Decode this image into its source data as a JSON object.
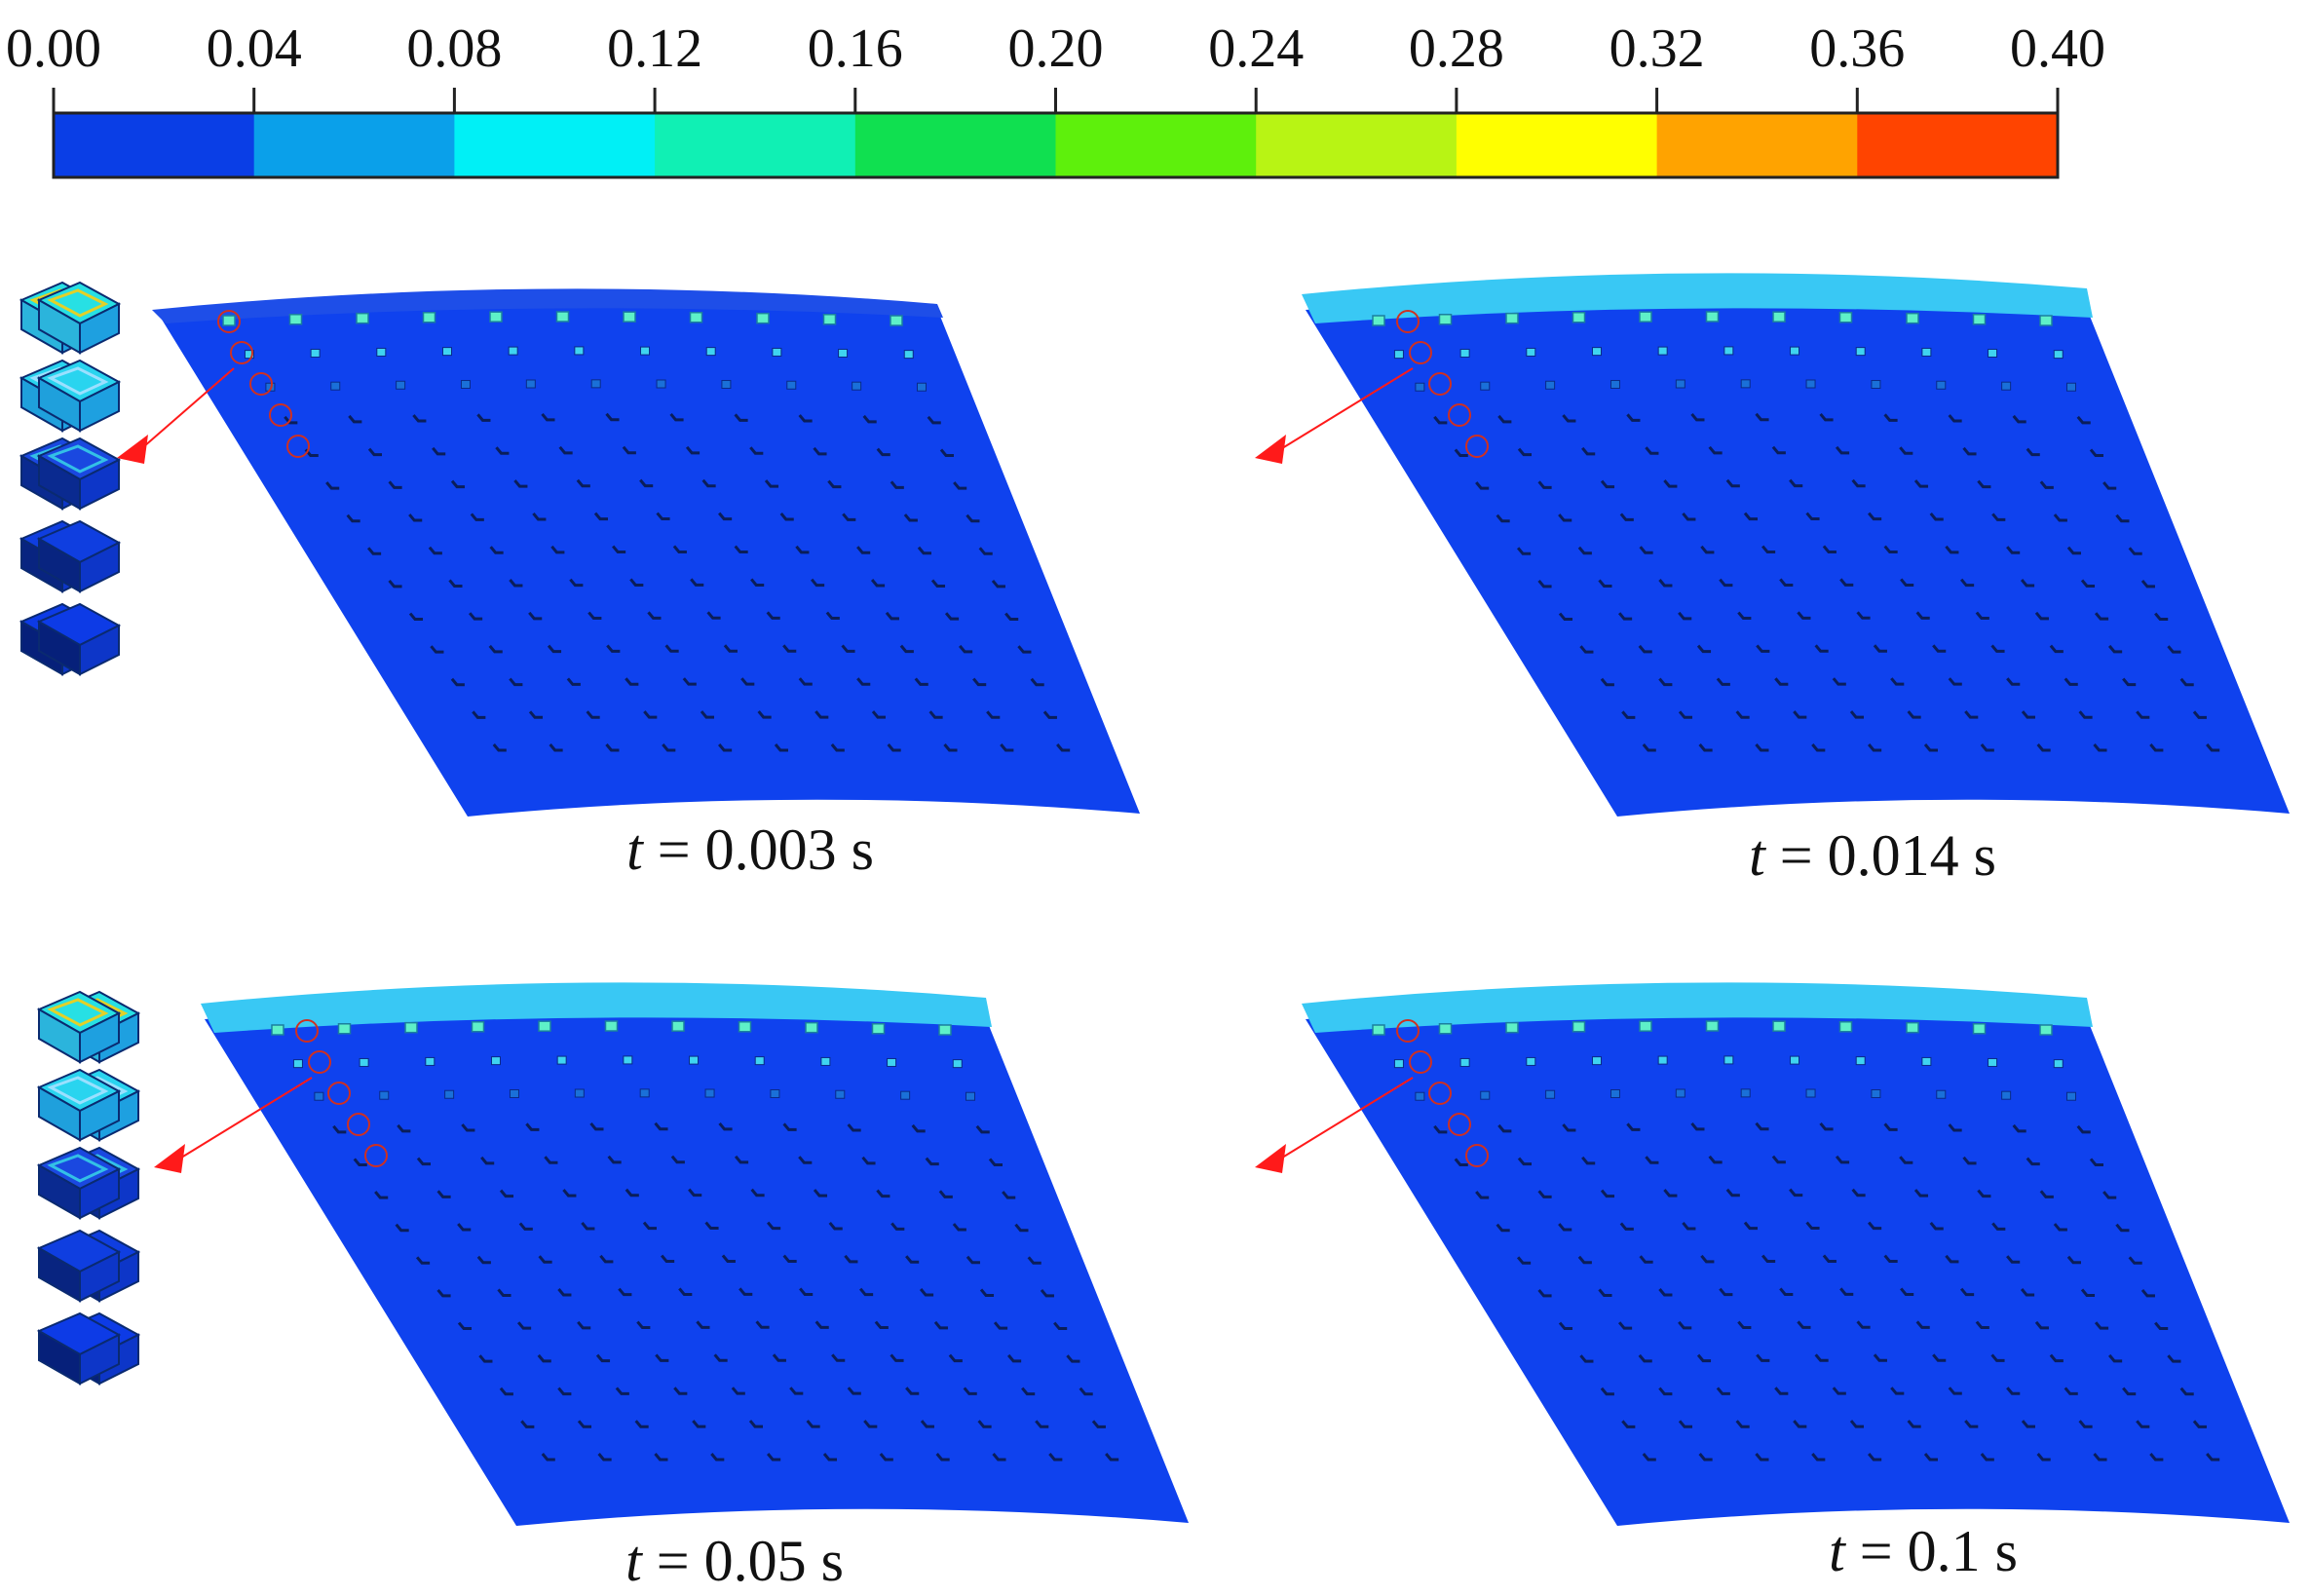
{
  "colorbar": {
    "tick_labels": [
      "0.00",
      "0.04",
      "0.08",
      "0.12",
      "0.16",
      "0.20",
      "0.24",
      "0.28",
      "0.32",
      "0.36",
      "0.40"
    ],
    "colors": [
      "#0a3ee6",
      "#0aa0ea",
      "#00f0f6",
      "#10f0b4",
      "#10e050",
      "#5ef00c",
      "#b8f414",
      "#ffff00",
      "#ffa300",
      "#ff4400"
    ]
  },
  "panels": [
    {
      "t_var": "t",
      "time_text": "= 0.003 s"
    },
    {
      "t_var": "t",
      "time_text": "= 0.014 s"
    },
    {
      "t_var": "t",
      "time_text": "= 0.05 s"
    },
    {
      "t_var": "t",
      "time_text": "= 0.1 s"
    }
  ],
  "colors": {
    "surface": "#0f42ee",
    "top_band": "#39c8f4",
    "callout_arrow": "#ff1a1a"
  }
}
